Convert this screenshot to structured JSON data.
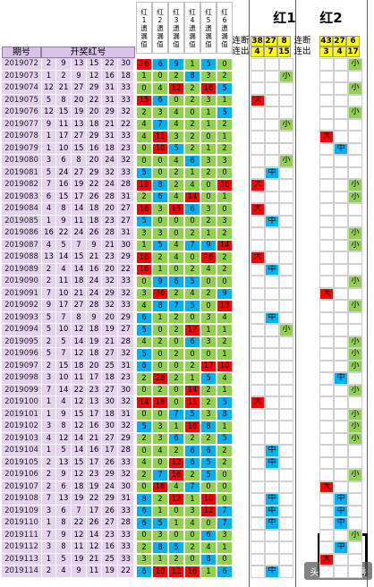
{
  "headers": {
    "period": "期号",
    "numbers": "开奖红号"
  },
  "metric_headers": [
    [
      "红",
      "1",
      "遗",
      "漏",
      "值"
    ],
    [
      "红",
      "2",
      "遗",
      "漏",
      "值"
    ],
    [
      "红",
      "3",
      "遗",
      "漏",
      "值"
    ],
    [
      "红",
      "4",
      "遗",
      "漏",
      "值"
    ],
    [
      "红",
      "5",
      "遗",
      "漏",
      "值"
    ],
    [
      "红",
      "6",
      "遗",
      "漏",
      "值"
    ]
  ],
  "groups": [
    {
      "title": "红1",
      "label": "连断连出",
      "ydata": [
        "38",
        "27",
        "8",
        "4",
        "7",
        "15"
      ]
    },
    {
      "title": "红2",
      "label": "连断连出",
      "ydata": [
        "43",
        "27",
        "6",
        "3",
        "4",
        "17"
      ]
    }
  ],
  "rows": [
    {
      "p": "2019072",
      "n": [
        "2",
        "9",
        "13",
        "15",
        "22",
        "30"
      ],
      "m": [
        "26",
        "6",
        "9",
        "1",
        "5",
        "0"
      ],
      "c1": "",
      "c2": "小"
    },
    {
      "p": "2019073",
      "n": [
        "1",
        "2",
        "9",
        "12",
        "16",
        "18"
      ],
      "m": [
        "1",
        "0",
        "2",
        "8",
        "3",
        "2"
      ],
      "c1": "小",
      "c2": ""
    },
    {
      "p": "2019074",
      "n": [
        "12",
        "21",
        "27",
        "29",
        "31",
        "33"
      ],
      "m": [
        "0",
        "4",
        "12",
        "2",
        "16",
        "5"
      ],
      "c1": "",
      "c2": "小"
    },
    {
      "p": "2019075",
      "n": [
        "5",
        "8",
        "20",
        "22",
        "31",
        "33"
      ],
      "m": [
        "15",
        "6",
        "0",
        "2",
        "3",
        "1"
      ],
      "c1": "大",
      "c2": ""
    },
    {
      "p": "2019076",
      "n": [
        "12",
        "15",
        "19",
        "20",
        "29",
        "32"
      ],
      "m": [
        "2",
        "3",
        "4",
        "0",
        "1",
        "5"
      ],
      "c1": "",
      "c2": "小"
    },
    {
      "p": "2019077",
      "n": [
        "9",
        "11",
        "13",
        "18",
        "21",
        "22"
      ],
      "m": [
        "4",
        "7",
        "4",
        "2",
        "1",
        "2"
      ],
      "c1": "小",
      "c2": ""
    },
    {
      "p": "2019078",
      "n": [
        "1",
        "17",
        "27",
        "29",
        "31",
        "33"
      ],
      "m": [
        "4",
        "11",
        "3",
        "2",
        "0",
        "1"
      ],
      "c1": "",
      "c2": "大"
    },
    {
      "p": "2019079",
      "n": [
        "1",
        "10",
        "15",
        "16",
        "18",
        "23"
      ],
      "m": [
        "0",
        "10",
        "5",
        "2",
        "1",
        "2"
      ],
      "c1": "",
      "c2": "中"
    },
    {
      "p": "2019080",
      "n": [
        "3",
        "6",
        "8",
        "20",
        "24",
        "32"
      ],
      "m": [
        "0",
        "0",
        "4",
        "6",
        "3",
        "3"
      ],
      "c1": "小",
      "c2": ""
    },
    {
      "p": "2019081",
      "n": [
        "5",
        "24",
        "27",
        "29",
        "32",
        "33"
      ],
      "m": [
        "5",
        "0",
        "2",
        "1",
        "2",
        "0"
      ],
      "c1": "中",
      "c2": ""
    },
    {
      "p": "2019082",
      "n": [
        "7",
        "16",
        "19",
        "22",
        "24",
        "28"
      ],
      "m": [
        "19",
        "8",
        "2",
        "4",
        "0",
        "30"
      ],
      "c1": "大",
      "c2": "小"
    },
    {
      "p": "2019083",
      "n": [
        "6",
        "15",
        "17",
        "26",
        "28",
        "31"
      ],
      "m": [
        "2",
        "6",
        "4",
        "14",
        "0",
        "1"
      ],
      "c1": "",
      "c2": "小"
    },
    {
      "p": "2019084",
      "n": [
        "4",
        "8",
        "14",
        "18",
        "20",
        "27"
      ],
      "m": [
        "16",
        "3",
        "15",
        "6",
        "3",
        "0"
      ],
      "c1": "大",
      "c2": ""
    },
    {
      "p": "2019085",
      "n": [
        "1",
        "9",
        "11",
        "18",
        "23",
        "27"
      ],
      "m": [
        "5",
        "0",
        "0",
        "0",
        "2",
        "3"
      ],
      "c1": "中",
      "c2": ""
    },
    {
      "p": "2019086",
      "n": [
        "16",
        "22",
        "24",
        "26",
        "28",
        "31"
      ],
      "m": [
        "3",
        "3",
        "0",
        "2",
        "1",
        "2"
      ],
      "c1": "",
      "c2": "小"
    },
    {
      "p": "2019087",
      "n": [
        "4",
        "5",
        "7",
        "9",
        "21",
        "30"
      ],
      "m": [
        "1",
        "5",
        "4",
        "7",
        "9",
        "14"
      ],
      "c1": "",
      "c2": "小"
    },
    {
      "p": "2019088",
      "n": [
        "13",
        "14",
        "15",
        "21",
        "23",
        "29"
      ],
      "m": [
        "10",
        "2",
        "4",
        "0",
        "26",
        "2"
      ],
      "c1": "大",
      "c2": ""
    },
    {
      "p": "2019089",
      "n": [
        "2",
        "4",
        "14",
        "16",
        "20",
        "22"
      ],
      "m": [
        "16",
        "1",
        "0",
        "2",
        "4",
        "2"
      ],
      "c1": "中",
      "c2": ""
    },
    {
      "p": "2019090",
      "n": [
        "2",
        "11",
        "18",
        "24",
        "32",
        "33"
      ],
      "m": [
        "0",
        "9",
        "6",
        "5",
        "0",
        "0"
      ],
      "c1": "",
      "c2": "小"
    },
    {
      "p": "2019091",
      "n": [
        "7",
        "10",
        "21",
        "24",
        "29",
        "32"
      ],
      "m": [
        "3",
        "36",
        "2",
        "4",
        "2",
        "9"
      ],
      "c1": "",
      "c2": "大"
    },
    {
      "p": "2019092",
      "n": [
        "9",
        "17",
        "27",
        "28",
        "32",
        "33"
      ],
      "m": [
        "4",
        "8",
        "7",
        "5",
        "0",
        "13"
      ],
      "c1": "",
      "c2": "小"
    },
    {
      "p": "2019093",
      "n": [
        "5",
        "7",
        "8",
        "9",
        "20",
        "29"
      ],
      "m": [
        "6",
        "1",
        "2",
        "0",
        "3",
        "4"
      ],
      "c1": "中",
      "c2": ""
    },
    {
      "p": "2019094",
      "n": [
        "5",
        "10",
        "12",
        "18",
        "19",
        "27"
      ],
      "m": [
        "5",
        "0",
        "2",
        "17",
        "1",
        "1"
      ],
      "c1": "小",
      "c2": ""
    },
    {
      "p": "2019095",
      "n": [
        "2",
        "5",
        "14",
        "19",
        "21",
        "28"
      ],
      "m": [
        "4",
        "2",
        "0",
        "6",
        "3",
        "2"
      ],
      "c1": "",
      "c2": "小"
    },
    {
      "p": "2019096",
      "n": [
        "5",
        "7",
        "12",
        "18",
        "27",
        "32"
      ],
      "m": [
        "5",
        "0",
        "2",
        "0",
        "0",
        "1"
      ],
      "c1": "",
      "c2": "小"
    },
    {
      "p": "2019097",
      "n": [
        "2",
        "15",
        "18",
        "20",
        "25",
        "31"
      ],
      "m": [
        "6",
        "0",
        "0",
        "2",
        "17",
        "10"
      ],
      "c1": "",
      "c2": "小"
    },
    {
      "p": "2019098",
      "n": [
        "3",
        "10",
        "11",
        "17",
        "18",
        "23"
      ],
      "m": [
        "2",
        "28",
        "2",
        "1",
        "5",
        "4"
      ],
      "c1": "",
      "c2": "中"
    },
    {
      "p": "2019099",
      "n": [
        "7",
        "14",
        "22",
        "23",
        "27",
        "30"
      ],
      "m": [
        "0",
        "2",
        "0",
        "14",
        "2",
        "1"
      ],
      "c1": "",
      "c2": "小"
    },
    {
      "p": "2019100",
      "n": [
        "1",
        "4",
        "12",
        "13",
        "30",
        "32"
      ],
      "m": [
        "14",
        "18",
        "0",
        "11",
        "2",
        "5"
      ],
      "c1": "大",
      "c2": ""
    },
    {
      "p": "2019101",
      "n": [
        "1",
        "9",
        "15",
        "17",
        "18",
        "31"
      ],
      "m": [
        "0",
        "0",
        "7",
        "5",
        "3",
        "8"
      ],
      "c1": "",
      "c2": "小"
    },
    {
      "p": "2019102",
      "n": [
        "3",
        "8",
        "12",
        "16",
        "30",
        "32"
      ],
      "m": [
        "5",
        "3",
        "1",
        "16",
        "8",
        "1"
      ],
      "c1": "",
      "c2": "小"
    },
    {
      "p": "2019103",
      "n": [
        "4",
        "12",
        "14",
        "21",
        "27",
        "29"
      ],
      "m": [
        "2",
        "3",
        "6",
        "2",
        "2",
        "5"
      ],
      "c1": "",
      "c2": "小"
    },
    {
      "p": "2019104",
      "n": [
        "1",
        "5",
        "14",
        "16",
        "17",
        "28"
      ],
      "m": [
        "0",
        "4",
        "2",
        "6",
        "6",
        "2"
      ],
      "c1": "中",
      "c2": ""
    },
    {
      "p": "2019105",
      "n": [
        "2",
        "13",
        "15",
        "17",
        "26",
        "33"
      ],
      "m": [
        "4",
        "0",
        "12",
        "6",
        "5",
        "2"
      ],
      "c1": "中",
      "c2": ""
    },
    {
      "p": "2019106",
      "n": [
        "2",
        "9",
        "12",
        "23",
        "29",
        "32"
      ],
      "m": [
        "2",
        "7",
        "16",
        "2",
        "5",
        "0"
      ],
      "c1": "",
      "c2": "小"
    },
    {
      "p": "2019107",
      "n": [
        "2",
        "6",
        "18",
        "19",
        "24",
        "30"
      ],
      "m": [
        "0",
        "16",
        "4",
        "7",
        "0",
        "0"
      ],
      "c1": "",
      "c2": "大"
    },
    {
      "p": "2019108",
      "n": [
        "7",
        "13",
        "19",
        "22",
        "29",
        "31"
      ],
      "m": [
        "8",
        "2",
        "12",
        "1",
        "10",
        "0"
      ],
      "c1": "中",
      "c2": "中"
    },
    {
      "p": "2019109",
      "n": [
        "3",
        "6",
        "7",
        "17",
        "26",
        "33"
      ],
      "m": [
        "6",
        "1",
        "0",
        "3",
        "12",
        "7"
      ],
      "c1": "中",
      "c2": "中"
    },
    {
      "p": "2019110",
      "n": [
        "1",
        "8",
        "22",
        "26",
        "27",
        "28"
      ],
      "m": [
        "6",
        "5",
        "1",
        "4",
        "0",
        "7"
      ],
      "c1": "中",
      "c2": "中"
    },
    {
      "p": "2019111",
      "n": [
        "7",
        "9",
        "12",
        "14",
        "23",
        "33"
      ],
      "m": [
        "0",
        "3",
        "0",
        "0",
        "6",
        "3"
      ],
      "c1": "",
      "c2": "小"
    },
    {
      "p": "2019112",
      "n": [
        "3",
        "8",
        "11",
        "12",
        "16",
        "33"
      ],
      "m": [
        "2",
        "8",
        "5",
        "2",
        "4",
        "1"
      ],
      "c1": "",
      "c2": "中"
    },
    {
      "p": "2019113",
      "n": [
        "1",
        "5",
        "19",
        "21",
        "25",
        "33"
      ],
      "m": [
        "3",
        "1",
        "2",
        "0",
        "8",
        "0"
      ],
      "c1": "",
      "c2": "大"
    },
    {
      "p": "2019114",
      "n": [
        "2",
        "4",
        "9",
        "11",
        "19",
        "22"
      ],
      "m": [
        "6",
        "10",
        "12",
        "16",
        "1",
        "6"
      ],
      "c1": "中",
      "c2": ""
    }
  ],
  "colors": {
    "red": "#ff0000",
    "blue": "#00b0f0",
    "green": "#92d050",
    "yellow": "#ffff00",
    "violet": "#e4d2ef"
  },
  "watermark": "头条 @定彩秀"
}
